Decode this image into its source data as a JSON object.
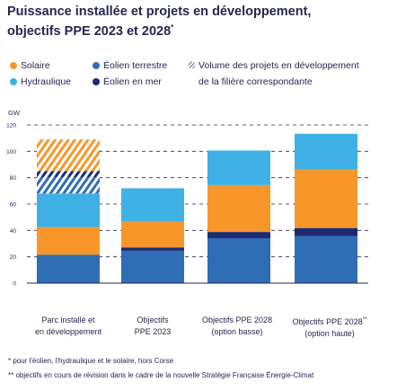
{
  "title": {
    "line1": "Puissance installée et projets en développement,",
    "line2": "objectifs PPE 2023 et 2028",
    "sup": "*"
  },
  "legend": [
    {
      "label": "Solaire",
      "color": "#f7972a",
      "kind": "dot"
    },
    {
      "label": "Éolien terrestre",
      "color": "#2f6db5",
      "kind": "dot"
    },
    {
      "label": "Volume des projets en développement",
      "color": "#9a9aa8",
      "kind": "hatch"
    },
    {
      "label": "Hydraulique",
      "color": "#3fb1e4",
      "kind": "dot"
    },
    {
      "label": "Éolien en mer",
      "color": "#1d2a73",
      "kind": "dot"
    },
    {
      "label": "de la filière correspondante",
      "kind": "text"
    }
  ],
  "chart_data": {
    "type": "bar",
    "stacked": true,
    "unit": "GW",
    "ylim": [
      0,
      120
    ],
    "yticks": [
      0,
      20,
      40,
      60,
      80,
      100,
      120
    ],
    "categories": [
      {
        "line1": "Parc installé et",
        "line2": "en développement",
        "sup": ""
      },
      {
        "line1": "Objectifs",
        "line2": "PPE 2023",
        "sup": ""
      },
      {
        "line1": "Objectifs PPE 2028",
        "line2": "(option basse)",
        "sup": ""
      },
      {
        "line1": "Objectifs PPE 2028",
        "line2": "(option haute)",
        "sup": "**"
      }
    ],
    "series": [
      {
        "name": "Éolien terrestre",
        "color": "#2f6db5",
        "values": [
          21.5,
          24.6,
          34.1,
          35.6
        ]
      },
      {
        "name": "Éolien en mer",
        "color": "#1d2a73",
        "values": [
          0,
          2.5,
          4.7,
          6.2
        ]
      },
      {
        "name": "Solaire",
        "color": "#f7972a",
        "values": [
          21,
          19.5,
          35.6,
          44.5
        ]
      },
      {
        "name": "Hydraulique",
        "color": "#3fb1e4",
        "values": [
          25.5,
          25.4,
          26.2,
          27
        ]
      }
    ],
    "development_hatch": {
      "color_light": "#ffffff",
      "segments_first_bar": [
        {
          "series": "Éolien terrestre",
          "base": 68,
          "value": 12.5,
          "color": "#2f6db5"
        },
        {
          "series": "Éolien en mer",
          "base": 80.5,
          "value": 4.5,
          "color": "#1d2a73"
        },
        {
          "series": "Solaire",
          "base": 85,
          "value": 24,
          "color": "#f7972a"
        }
      ]
    },
    "grid": "dashed-horizontal"
  },
  "footnotes": [
    "* pour l'éolien, l'hydraulique et le solaire, hors Corse",
    "** objectifs en cours de révision dans le cadre de la nouvelle Stratégie Française Énergie-Climat"
  ]
}
